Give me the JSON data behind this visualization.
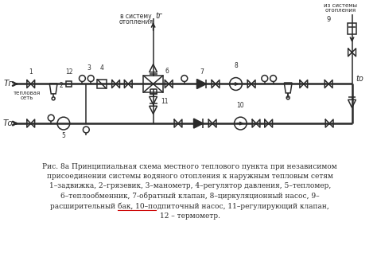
{
  "bg_color": "#ffffff",
  "line_color": "#2a2a2a",
  "caption_lines": [
    "Рис. 8а Принципиальная схема местного теплового пункта при независимом",
    "присоединении системы водяного отопления к наружным тепловым сетям",
    "1–задвижка, 2–грязевик, 3–манометр, 4–регулятор давления, 5–тепломер,",
    "6–теплообменник, 7-обратный клапан, 8–циркуляционный насос, 9–",
    "расширительный бак, 10–подпиточный насос, 11–регулирующий клапан,",
    "12 – термометр."
  ],
  "fig_width": 4.74,
  "fig_height": 3.28,
  "dpi": 100,
  "yU": 105,
  "yL": 155,
  "xL": 12,
  "xR": 445
}
